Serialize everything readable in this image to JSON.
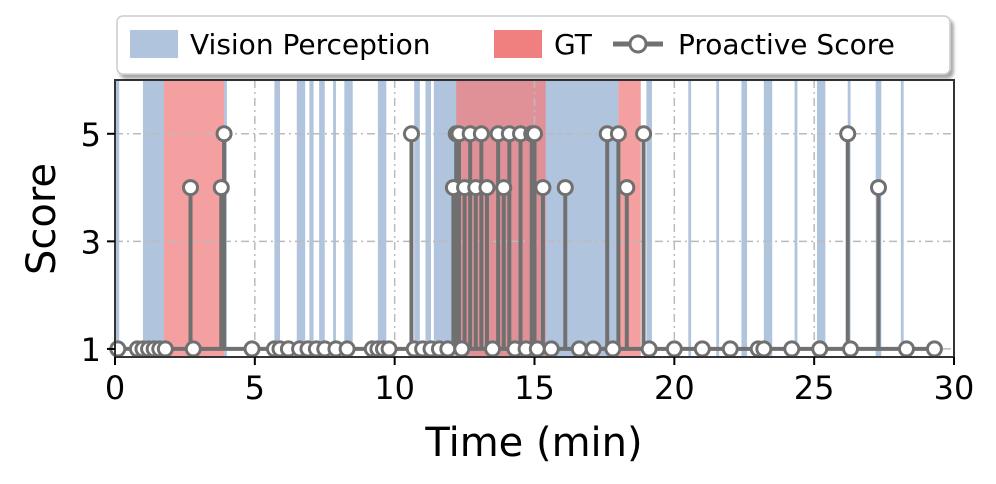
{
  "chart_data": {
    "type": "line",
    "xlabel": "Time (min)",
    "ylabel": "Score",
    "xlim": [
      0,
      30
    ],
    "ylim": [
      0.85,
      6.0
    ],
    "xticks": [
      0,
      5,
      10,
      15,
      20,
      25,
      30
    ],
    "xtick_labels": [
      "0",
      "5",
      "10",
      "15",
      "20",
      "25",
      "30"
    ],
    "yticks": [
      1,
      3,
      5
    ],
    "ytick_labels": [
      "1",
      "3",
      "5"
    ],
    "grid": true,
    "legend_position": "top-center",
    "legend": {
      "vision": "Vision Perception",
      "gt": "GT",
      "score": "Proactive Score"
    },
    "colors": {
      "vision": "#b0c4de",
      "gt": "#f08080",
      "score": "#707070",
      "marker_face": "#ffffff"
    },
    "vision_spans": [
      [
        0,
        0.15
      ],
      [
        1.0,
        1.75
      ],
      [
        3.9,
        4.0
      ],
      [
        5.7,
        5.9
      ],
      [
        6.5,
        6.8
      ],
      [
        6.95,
        7.1
      ],
      [
        7.3,
        7.5
      ],
      [
        7.8,
        7.9
      ],
      [
        8.2,
        8.5
      ],
      [
        9.4,
        9.7
      ],
      [
        10.7,
        10.9
      ],
      [
        11.1,
        11.3
      ],
      [
        11.4,
        18.0
      ],
      [
        19.0,
        19.2
      ],
      [
        20.5,
        20.6
      ],
      [
        21.5,
        21.6
      ],
      [
        22.4,
        22.6
      ],
      [
        23.2,
        23.5
      ],
      [
        24.3,
        24.4
      ],
      [
        25.1,
        25.4
      ],
      [
        26.2,
        26.3
      ],
      [
        27.2,
        27.4
      ],
      [
        28.1,
        28.2
      ]
    ],
    "gt_spans": [
      [
        1.75,
        3.9
      ],
      [
        12.2,
        15.4
      ],
      [
        18.0,
        18.8
      ]
    ],
    "points": {
      "x": [
        0.1,
        0.8,
        1.0,
        1.2,
        1.4,
        1.6,
        1.8,
        2.7,
        2.8,
        3.8,
        3.9,
        4.9,
        5.7,
        5.9,
        6.2,
        6.6,
        6.9,
        7.2,
        7.5,
        7.9,
        8.3,
        9.2,
        9.4,
        9.6,
        9.8,
        10.6,
        10.7,
        11.0,
        11.3,
        11.6,
        11.9,
        12.1,
        12.2,
        12.3,
        12.4,
        12.5,
        12.7,
        12.9,
        13.1,
        13.3,
        13.5,
        13.7,
        13.9,
        14.1,
        14.3,
        14.5,
        14.7,
        14.9,
        15.0,
        15.1,
        15.3,
        15.6,
        16.1,
        16.6,
        17.1,
        17.6,
        17.8,
        18.0,
        18.3,
        18.9,
        19.1,
        20.0,
        21.0,
        22.0,
        23.0,
        23.2,
        24.2,
        25.2,
        26.2,
        26.3,
        27.3,
        28.3,
        29.3
      ],
      "y": [
        1,
        1,
        1,
        1,
        1,
        1,
        1,
        4,
        1,
        4,
        5,
        1,
        1,
        1,
        1,
        1,
        1,
        1,
        1,
        1,
        1,
        1,
        1,
        1,
        1,
        5,
        1,
        1,
        1,
        1,
        1,
        4,
        5,
        5,
        1,
        4,
        5,
        4,
        5,
        4,
        1,
        5,
        4,
        5,
        1,
        5,
        1,
        5,
        5,
        1,
        4,
        1,
        4,
        1,
        1,
        5,
        1,
        5,
        4,
        5,
        1,
        1,
        1,
        1,
        1,
        1,
        1,
        1,
        5,
        1,
        4,
        1,
        1
      ]
    }
  }
}
